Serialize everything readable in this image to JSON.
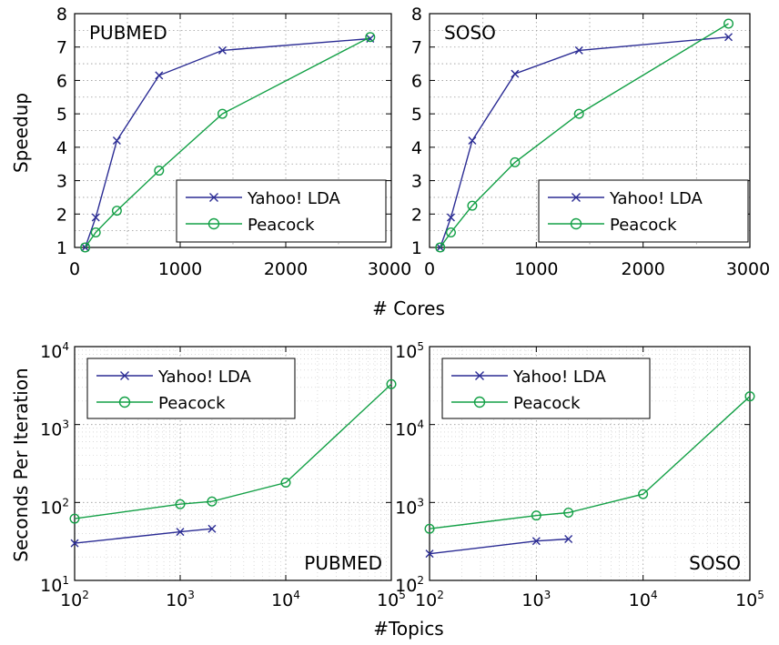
{
  "figure": {
    "xlabel_top": "# Cores",
    "ylabel_top": "Speedup",
    "xlabel_bottom": "#Topics",
    "ylabel_bottom": "Seconds Per Iteration"
  },
  "colors": {
    "yahoo": "#2b2c94",
    "peacock": "#13a046"
  },
  "chart_data": [
    {
      "id": "speedup-pubmed",
      "type": "line",
      "title": "PUBMED",
      "title_position": "top-left",
      "xlabel": "# Cores",
      "ylabel": "Speedup",
      "xscale": "linear",
      "yscale": "linear",
      "xlim": [
        0,
        3000
      ],
      "ylim": [
        1,
        8
      ],
      "xticks": [
        0,
        1000,
        2000,
        3000
      ],
      "yticks": [
        1,
        2,
        3,
        4,
        5,
        6,
        7,
        8
      ],
      "grid": true,
      "legend_position": "bottom-right",
      "series": [
        {
          "name": "Yahoo! LDA",
          "marker": "x",
          "color_key": "yahoo",
          "x": [
            100,
            200,
            400,
            800,
            1400,
            2800
          ],
          "y": [
            1.0,
            1.9,
            4.2,
            6.15,
            6.9,
            7.25
          ]
        },
        {
          "name": "Peacock",
          "marker": "o",
          "color_key": "peacock",
          "x": [
            100,
            200,
            400,
            800,
            1400,
            2800
          ],
          "y": [
            1.0,
            1.45,
            2.1,
            3.3,
            5.0,
            7.3
          ]
        }
      ]
    },
    {
      "id": "speedup-soso",
      "type": "line",
      "title": "SOSO",
      "title_position": "top-left",
      "xlabel": "# Cores",
      "ylabel": "Speedup",
      "xscale": "linear",
      "yscale": "linear",
      "xlim": [
        0,
        3000
      ],
      "ylim": [
        1,
        8
      ],
      "xticks": [
        0,
        1000,
        2000,
        3000
      ],
      "yticks": [
        1,
        2,
        3,
        4,
        5,
        6,
        7,
        8
      ],
      "grid": true,
      "legend_position": "bottom-right",
      "series": [
        {
          "name": "Yahoo! LDA",
          "marker": "x",
          "color_key": "yahoo",
          "x": [
            100,
            200,
            400,
            800,
            1400,
            2800
          ],
          "y": [
            1.0,
            1.9,
            4.2,
            6.2,
            6.9,
            7.3
          ]
        },
        {
          "name": "Peacock",
          "marker": "o",
          "color_key": "peacock",
          "x": [
            100,
            200,
            400,
            800,
            1400,
            2800
          ],
          "y": [
            1.0,
            1.45,
            2.25,
            3.55,
            5.0,
            7.7
          ]
        }
      ]
    },
    {
      "id": "time-pubmed",
      "type": "line",
      "title": "PUBMED",
      "title_position": "bottom-right",
      "xlabel": "#Topics",
      "ylabel": "Seconds Per Iteration",
      "xscale": "log",
      "yscale": "log",
      "xlim": [
        100,
        100000
      ],
      "ylim": [
        10,
        10000
      ],
      "xtick_exponents": [
        "2",
        "3",
        "4",
        "5"
      ],
      "ytick_exponents": [
        "1",
        "2",
        "3",
        "4"
      ],
      "tick_base": "10",
      "grid": true,
      "legend_position": "top-left",
      "series": [
        {
          "name": "Yahoo! LDA",
          "marker": "x",
          "color_key": "yahoo",
          "x": [
            100,
            1000,
            2000
          ],
          "y": [
            30,
            42,
            46
          ]
        },
        {
          "name": "Peacock",
          "marker": "o",
          "color_key": "peacock",
          "x": [
            100,
            1000,
            2000,
            10000,
            100000
          ],
          "y": [
            62,
            95,
            103,
            180,
            3300
          ]
        }
      ]
    },
    {
      "id": "time-soso",
      "type": "line",
      "title": "SOSO",
      "title_position": "bottom-right",
      "xlabel": "#Topics",
      "ylabel": "Seconds Per Iteration",
      "xscale": "log",
      "yscale": "log",
      "xlim": [
        100,
        100000
      ],
      "ylim": [
        100,
        100000
      ],
      "xtick_exponents": [
        "2",
        "3",
        "4",
        "5"
      ],
      "ytick_exponents": [
        "2",
        "3",
        "4",
        "5"
      ],
      "tick_base": "10",
      "grid": true,
      "legend_position": "top-left",
      "series": [
        {
          "name": "Yahoo! LDA",
          "marker": "x",
          "color_key": "yahoo",
          "x": [
            100,
            1000,
            2000
          ],
          "y": [
            220,
            320,
            340
          ]
        },
        {
          "name": "Peacock",
          "marker": "o",
          "color_key": "peacock",
          "x": [
            100,
            1000,
            2000,
            10000,
            100000
          ],
          "y": [
            460,
            680,
            740,
            1280,
            23000
          ]
        }
      ]
    }
  ]
}
